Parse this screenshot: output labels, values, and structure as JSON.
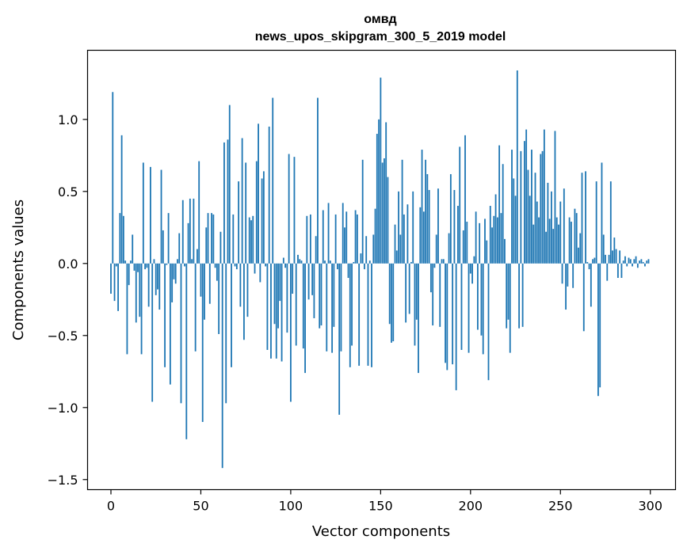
{
  "chart_data": {
    "type": "bar",
    "title": "омвд",
    "subtitle": "news_upos_skipgram_300_5_2019 model",
    "xlabel": "Vector components",
    "ylabel": "Components values",
    "xlim": [
      -13,
      314
    ],
    "ylim": [
      -1.57,
      1.48
    ],
    "x_ticks": [
      0,
      50,
      100,
      150,
      200,
      250,
      300
    ],
    "x_tick_labels": [
      "0",
      "50",
      "100",
      "150",
      "200",
      "250",
      "300"
    ],
    "y_ticks": [
      -1.5,
      -1.0,
      -0.5,
      0.0,
      0.5,
      1.0
    ],
    "y_tick_labels": [
      "−1.5",
      "−1.0",
      "−0.5",
      "0.0",
      "0.5",
      "1.0"
    ],
    "grid": false,
    "bar_color": "#1f77b4",
    "values": [
      -0.21,
      1.19,
      -0.26,
      -0.02,
      -0.33,
      0.35,
      0.89,
      0.33,
      0.02,
      -0.63,
      -0.15,
      0.02,
      0.2,
      -0.05,
      -0.41,
      -0.06,
      -0.37,
      -0.63,
      0.7,
      -0.04,
      -0.03,
      -0.3,
      0.67,
      -0.96,
      0.03,
      -0.22,
      -0.18,
      -0.32,
      0.65,
      0.23,
      -0.72,
      -0.01,
      0.35,
      -0.84,
      -0.27,
      -0.11,
      -0.14,
      0.03,
      0.21,
      -0.97,
      0.44,
      -0.02,
      -1.22,
      0.28,
      0.45,
      0.03,
      0.45,
      -0.61,
      0.1,
      0.71,
      -0.23,
      -1.1,
      -0.39,
      0.25,
      0.35,
      -0.28,
      0.35,
      0.34,
      -0.03,
      -0.12,
      -0.49,
      0.22,
      -1.42,
      0.84,
      -0.97,
      0.86,
      1.1,
      -0.72,
      0.34,
      -0.02,
      -0.04,
      0.57,
      -0.3,
      0.87,
      -0.53,
      0.7,
      -0.37,
      0.32,
      0.3,
      0.33,
      -0.07,
      0.71,
      0.97,
      -0.13,
      0.59,
      0.64,
      -0.02,
      -0.6,
      0.95,
      -0.66,
      1.15,
      -0.42,
      -0.66,
      -0.45,
      -0.26,
      -0.68,
      0.04,
      -0.03,
      -0.48,
      0.76,
      -0.96,
      -0.21,
      0.74,
      -0.57,
      0.06,
      0.03,
      0.02,
      -0.59,
      -0.76,
      0.33,
      -0.25,
      0.34,
      -0.22,
      -0.38,
      0.19,
      1.15,
      -0.45,
      -0.43,
      0.37,
      0.02,
      -0.61,
      0.42,
      0.02,
      -0.62,
      -0.44,
      0.34,
      -0.04,
      -1.05,
      -0.61,
      0.42,
      0.25,
      0.36,
      -0.1,
      -0.72,
      -0.57,
      0.01,
      0.37,
      0.34,
      -0.71,
      0.07,
      0.72,
      -0.04,
      0.19,
      -0.71,
      0.02,
      -0.72,
      0.2,
      0.38,
      0.9,
      1.0,
      1.29,
      0.7,
      0.73,
      0.98,
      0.6,
      -0.42,
      -0.55,
      -0.54,
      0.27,
      0.09,
      0.5,
      0.2,
      0.72,
      0.34,
      -0.41,
      0.41,
      -0.35,
      0.01,
      0.5,
      -0.57,
      -0.39,
      -0.76,
      0.39,
      0.79,
      0.36,
      0.72,
      0.62,
      0.51,
      -0.2,
      -0.43,
      -0.03,
      0.2,
      0.52,
      -0.44,
      0.03,
      0.03,
      -0.69,
      -0.74,
      0.21,
      0.62,
      -0.7,
      0.51,
      -0.88,
      0.4,
      0.81,
      -0.6,
      0.23,
      0.89,
      0.29,
      -0.62,
      -0.07,
      -0.14,
      0.05,
      0.36,
      -0.46,
      0.28,
      -0.5,
      -0.63,
      0.31,
      0.16,
      -0.81,
      0.4,
      0.25,
      0.33,
      0.48,
      0.32,
      0.82,
      0.35,
      0.69,
      0.17,
      -0.45,
      -0.39,
      -0.62,
      0.79,
      0.59,
      0.47,
      1.34,
      -0.45,
      0.78,
      -0.44,
      0.85,
      0.93,
      0.65,
      0.47,
      0.79,
      0.27,
      0.63,
      0.43,
      0.32,
      0.76,
      0.78,
      0.93,
      0.22,
      0.56,
      0.31,
      0.5,
      0.24,
      0.92,
      0.32,
      0.27,
      0.43,
      -0.14,
      0.52,
      -0.32,
      -0.16,
      0.32,
      0.29,
      -0.17,
      0.38,
      0.35,
      0.11,
      0.21,
      0.63,
      -0.47,
      0.64,
      0.01,
      -0.04,
      -0.3,
      0.03,
      0.04,
      0.57,
      -0.92,
      -0.86,
      0.7,
      0.2,
      0.06,
      -0.12,
      0.06,
      0.57,
      0.09,
      0.18,
      0.1,
      -0.1,
      0.09,
      -0.1,
      0.02,
      0.05,
      -0.02,
      0.04,
      0.03,
      -0.02,
      0.03,
      0.05,
      -0.03,
      0.02,
      0.03,
      0.01,
      -0.02,
      0.02,
      0.03
    ]
  }
}
